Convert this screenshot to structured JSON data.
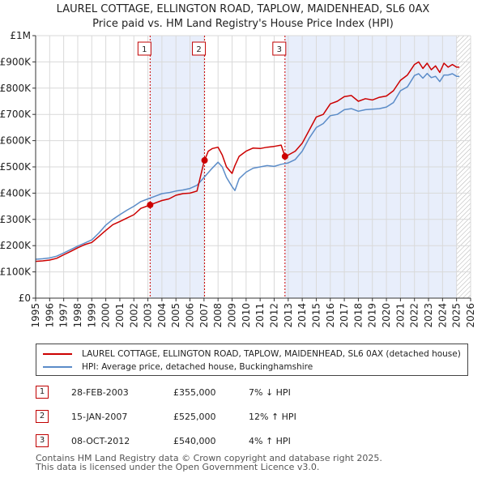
{
  "title_line1": "LAUREL COTTAGE, ELLINGTON ROAD, TAPLOW, MAIDENHEAD, SL6 0AX",
  "title_line2": "Price paid vs. HM Land Registry's House Price Index (HPI)",
  "colors": {
    "property_line": "#cc0000",
    "hpi_line": "#5b8cc8",
    "shade": "#e8eefb",
    "grid": "#d9d9d9",
    "marker_border": "#c00000",
    "hatch": "#b0b0b0"
  },
  "chart_data": {
    "type": "line",
    "xlim": [
      1995,
      2026
    ],
    "ylim": [
      0,
      1000000
    ],
    "y_ticks": [
      {
        "value": 0,
        "label": "£0"
      },
      {
        "value": 100000,
        "label": "£100K"
      },
      {
        "value": 200000,
        "label": "£200K"
      },
      {
        "value": 300000,
        "label": "£300K"
      },
      {
        "value": 400000,
        "label": "£400K"
      },
      {
        "value": 500000,
        "label": "£500K"
      },
      {
        "value": 600000,
        "label": "£600K"
      },
      {
        "value": 700000,
        "label": "£700K"
      },
      {
        "value": 800000,
        "label": "£800K"
      },
      {
        "value": 900000,
        "label": "£900K"
      },
      {
        "value": 1000000,
        "label": "£1M"
      }
    ],
    "x_ticks": [
      1995,
      1996,
      1997,
      1998,
      1999,
      2000,
      2001,
      2002,
      2003,
      2004,
      2005,
      2006,
      2007,
      2008,
      2009,
      2010,
      2011,
      2012,
      2013,
      2014,
      2015,
      2016,
      2017,
      2018,
      2019,
      2020,
      2021,
      2022,
      2023,
      2024,
      2025,
      2026
    ],
    "shaded_periods": [
      [
        2003.16,
        2007.04
      ],
      [
        2012.77,
        2025.0
      ]
    ],
    "hatched_after": 2025.0,
    "series": [
      {
        "name": "LAUREL COTTAGE, ELLINGTON ROAD, TAPLOW, MAIDENHEAD, SL6 0AX (detached house)",
        "x": [
          1995.0,
          1995.5,
          1996.0,
          1996.5,
          1997.0,
          1997.5,
          1998.0,
          1998.5,
          1999.0,
          1999.5,
          2000.0,
          2000.5,
          2001.0,
          2001.5,
          2002.0,
          2002.5,
          2003.0,
          2003.16,
          2003.5,
          2004.0,
          2004.5,
          2005.0,
          2005.5,
          2006.0,
          2006.5,
          2007.0,
          2007.04,
          2007.3,
          2007.6,
          2008.0,
          2008.3,
          2008.6,
          2009.0,
          2009.2,
          2009.5,
          2010.0,
          2010.5,
          2011.0,
          2011.5,
          2012.0,
          2012.5,
          2012.77,
          2013.0,
          2013.5,
          2014.0,
          2014.5,
          2015.0,
          2015.5,
          2016.0,
          2016.5,
          2017.0,
          2017.5,
          2018.0,
          2018.5,
          2019.0,
          2019.5,
          2020.0,
          2020.5,
          2021.0,
          2021.5,
          2022.0,
          2022.3,
          2022.6,
          2022.9,
          2023.2,
          2023.5,
          2023.8,
          2024.1,
          2024.4,
          2024.7,
          2025.0,
          2025.2
        ],
        "y": [
          140000,
          142000,
          145000,
          152000,
          165000,
          178000,
          192000,
          204000,
          212000,
          235000,
          258000,
          280000,
          292000,
          305000,
          318000,
          342000,
          352000,
          355000,
          362000,
          372000,
          378000,
          392000,
          398000,
          400000,
          408000,
          520000,
          525000,
          560000,
          570000,
          575000,
          545000,
          500000,
          475000,
          505000,
          540000,
          560000,
          572000,
          570000,
          575000,
          578000,
          583000,
          540000,
          545000,
          560000,
          590000,
          640000,
          690000,
          700000,
          740000,
          750000,
          768000,
          772000,
          750000,
          760000,
          755000,
          765000,
          770000,
          790000,
          830000,
          850000,
          890000,
          900000,
          875000,
          895000,
          870000,
          885000,
          860000,
          895000,
          880000,
          890000,
          880000,
          880000
        ]
      },
      {
        "name": "HPI: Average price, detached house, Buckinghamshire",
        "x": [
          1995.0,
          1995.5,
          1996.0,
          1996.5,
          1997.0,
          1997.5,
          1998.0,
          1998.5,
          1999.0,
          1999.5,
          2000.0,
          2000.5,
          2001.0,
          2001.5,
          2002.0,
          2002.5,
          2003.0,
          2003.5,
          2004.0,
          2004.5,
          2005.0,
          2005.5,
          2006.0,
          2006.5,
          2007.0,
          2007.5,
          2008.0,
          2008.3,
          2008.6,
          2009.0,
          2009.2,
          2009.5,
          2010.0,
          2010.5,
          2011.0,
          2011.5,
          2012.0,
          2012.5,
          2013.0,
          2013.5,
          2014.0,
          2014.5,
          2015.0,
          2015.5,
          2016.0,
          2016.5,
          2017.0,
          2017.5,
          2018.0,
          2018.5,
          2019.0,
          2019.5,
          2020.0,
          2020.5,
          2021.0,
          2021.5,
          2022.0,
          2022.3,
          2022.6,
          2022.9,
          2023.2,
          2023.5,
          2023.8,
          2024.1,
          2024.4,
          2024.7,
          2025.0,
          2025.2
        ],
        "y": [
          148000,
          150000,
          153000,
          160000,
          172000,
          185000,
          198000,
          210000,
          222000,
          248000,
          278000,
          300000,
          318000,
          335000,
          350000,
          368000,
          378000,
          388000,
          398000,
          402000,
          408000,
          412000,
          418000,
          430000,
          460000,
          490000,
          518000,
          500000,
          460000,
          425000,
          410000,
          455000,
          480000,
          495000,
          500000,
          505000,
          502000,
          510000,
          515000,
          528000,
          560000,
          610000,
          650000,
          665000,
          695000,
          700000,
          718000,
          722000,
          712000,
          718000,
          720000,
          722000,
          728000,
          745000,
          790000,
          805000,
          848000,
          855000,
          838000,
          856000,
          840000,
          845000,
          825000,
          850000,
          850000,
          855000,
          845000,
          845000
        ]
      }
    ],
    "transactions": [
      {
        "num": "1",
        "x": 2003.16,
        "y": 355000,
        "date": "28-FEB-2003",
        "price": "£355,000",
        "hpi": "7% ↓ HPI"
      },
      {
        "num": "2",
        "x": 2007.04,
        "y": 525000,
        "date": "15-JAN-2007",
        "price": "£525,000",
        "hpi": "12% ↑ HPI"
      },
      {
        "num": "3",
        "x": 2012.77,
        "y": 540000,
        "date": "08-OCT-2012",
        "price": "£540,000",
        "hpi": "4% ↑ HPI"
      }
    ]
  },
  "legend": {
    "property": "LAUREL COTTAGE, ELLINGTON ROAD, TAPLOW, MAIDENHEAD, SL6 0AX (detached house)",
    "hpi": "HPI: Average price, detached house, Buckinghamshire"
  },
  "footer_line1": "Contains HM Land Registry data © Crown copyright and database right 2025.",
  "footer_line2": "This data is licensed under the Open Government Licence v3.0."
}
